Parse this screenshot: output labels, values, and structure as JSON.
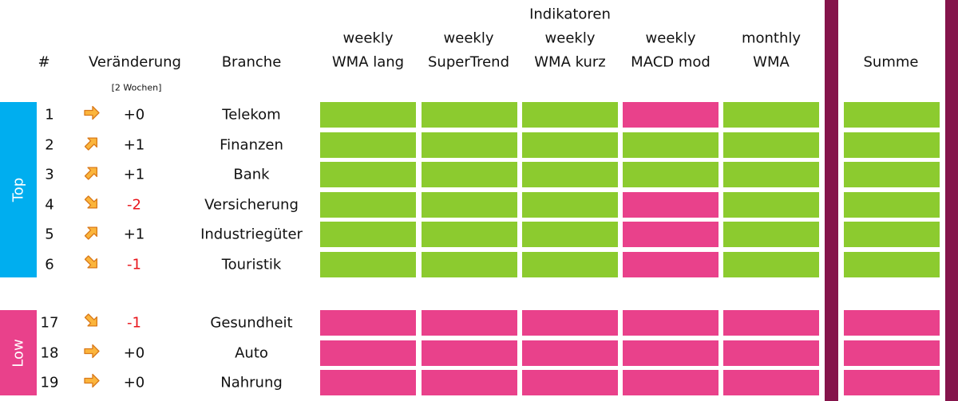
{
  "header": {
    "group_title": "Indikatoren",
    "number": "#",
    "change": "Veränderung",
    "change_note": "[2 Wochen]",
    "sector": "Branche",
    "sum": "Summe",
    "indicators": [
      [
        "weekly",
        "WMA lang"
      ],
      [
        "weekly",
        "SuperTrend"
      ],
      [
        "weekly",
        "WMA kurz"
      ],
      [
        "weekly",
        "MACD mod"
      ],
      [
        "monthly",
        "WMA"
      ]
    ]
  },
  "groups": [
    {
      "label": "Top",
      "color": "#00aeef",
      "rows": [
        {
          "rank": 1,
          "arrow_angle": 0,
          "change": "+0",
          "change_color": "#111111",
          "sector": "Telekom",
          "cells": [
            "#8ccb2f",
            "#8ccb2f",
            "#8ccb2f",
            "#e9418b",
            "#8ccb2f",
            "#8ccb2f"
          ]
        },
        {
          "rank": 2,
          "arrow_angle": -45,
          "change": "+1",
          "change_color": "#111111",
          "sector": "Finanzen",
          "cells": [
            "#8ccb2f",
            "#8ccb2f",
            "#8ccb2f",
            "#8ccb2f",
            "#8ccb2f",
            "#8ccb2f"
          ]
        },
        {
          "rank": 3,
          "arrow_angle": -45,
          "change": "+1",
          "change_color": "#111111",
          "sector": "Bank",
          "cells": [
            "#8ccb2f",
            "#8ccb2f",
            "#8ccb2f",
            "#8ccb2f",
            "#8ccb2f",
            "#8ccb2f"
          ]
        },
        {
          "rank": 4,
          "arrow_angle": 45,
          "change": "-2",
          "change_color": "#e8151b",
          "sector": "Versicherung",
          "cells": [
            "#8ccb2f",
            "#8ccb2f",
            "#8ccb2f",
            "#e9418b",
            "#8ccb2f",
            "#8ccb2f"
          ]
        },
        {
          "rank": 5,
          "arrow_angle": -45,
          "change": "+1",
          "change_color": "#111111",
          "sector": "Industriegüter",
          "cells": [
            "#8ccb2f",
            "#8ccb2f",
            "#8ccb2f",
            "#e9418b",
            "#8ccb2f",
            "#8ccb2f"
          ]
        },
        {
          "rank": 6,
          "arrow_angle": 45,
          "change": "-1",
          "change_color": "#e8151b",
          "sector": "Touristik",
          "cells": [
            "#8ccb2f",
            "#8ccb2f",
            "#8ccb2f",
            "#e9418b",
            "#8ccb2f",
            "#8ccb2f"
          ]
        }
      ]
    },
    {
      "label": "Low",
      "color": "#e9418b",
      "rows": [
        {
          "rank": 17,
          "arrow_angle": 45,
          "change": "-1",
          "change_color": "#e8151b",
          "sector": "Gesundheit",
          "cells": [
            "#e9418b",
            "#e9418b",
            "#e9418b",
            "#e9418b",
            "#e9418b",
            "#e9418b"
          ]
        },
        {
          "rank": 18,
          "arrow_angle": 0,
          "change": "+0",
          "change_color": "#111111",
          "sector": "Auto",
          "cells": [
            "#e9418b",
            "#e9418b",
            "#e9418b",
            "#e9418b",
            "#e9418b",
            "#e9418b"
          ]
        },
        {
          "rank": 19,
          "arrow_angle": 0,
          "change": "+0",
          "change_color": "#111111",
          "sector": "Nahrung",
          "cells": [
            "#e9418b",
            "#e9418b",
            "#e9418b",
            "#e9418b",
            "#e9418b",
            "#e9418b"
          ]
        }
      ]
    }
  ]
}
